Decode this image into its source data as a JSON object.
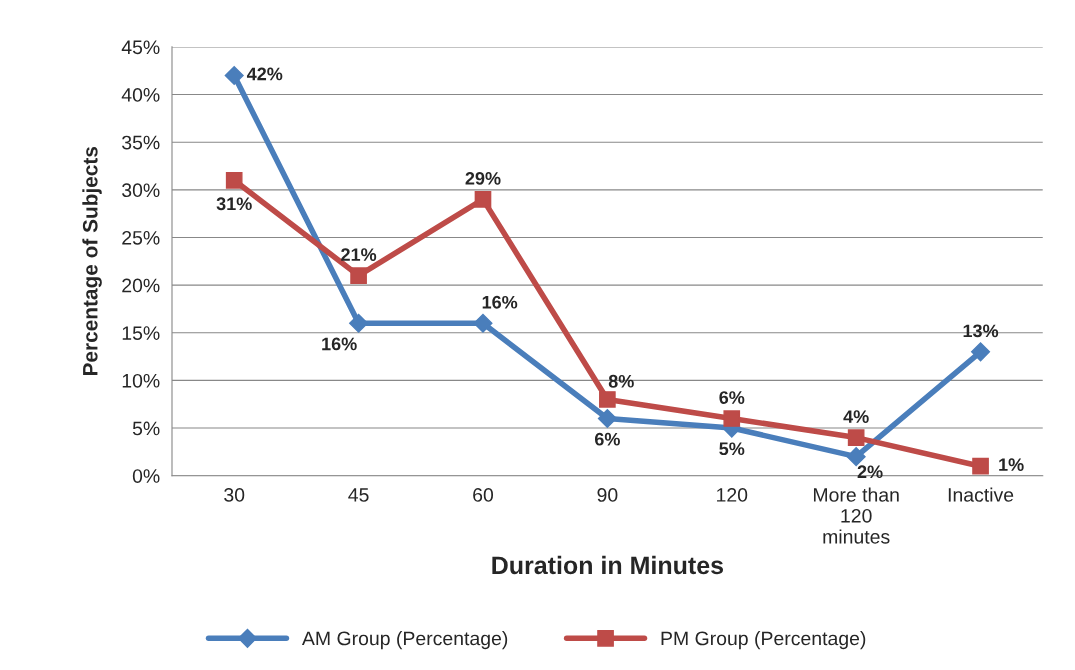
{
  "chart_data": {
    "type": "line",
    "xlabel": "Duration in Minutes",
    "ylabel": "Percentage of Subjects",
    "categories": [
      "30",
      "45",
      "60",
      "90",
      "120",
      "More than 120 minutes",
      "Inactive"
    ],
    "series": [
      {
        "name": "AM Group (Percentage)",
        "color": "#4a7ebb",
        "marker": "diamond",
        "values": [
          42,
          16,
          16,
          6,
          5,
          2,
          13
        ],
        "value_labels": [
          "42%",
          "16%",
          "16%",
          "6%",
          "5%",
          "2%",
          "13%"
        ]
      },
      {
        "name": "PM Group (Percentage)",
        "color": "#be4b48",
        "marker": "square",
        "values": [
          31,
          21,
          29,
          8,
          6,
          4,
          1
        ],
        "value_labels": [
          "31%",
          "21%",
          "29%",
          "8%",
          "6%",
          "4%",
          "1%"
        ]
      }
    ],
    "ylim": [
      0,
      45
    ],
    "yticks": [
      {
        "value": 0,
        "label": "0%"
      },
      {
        "value": 5,
        "label": "5%"
      },
      {
        "value": 10,
        "label": "10%"
      },
      {
        "value": 15,
        "label": "15%"
      },
      {
        "value": 20,
        "label": "20%"
      },
      {
        "value": 25,
        "label": "25%"
      },
      {
        "value": 30,
        "label": "30%"
      },
      {
        "value": 35,
        "label": "35%"
      },
      {
        "value": 40,
        "label": "40%"
      },
      {
        "value": 45,
        "label": "45%"
      }
    ],
    "grid": "y",
    "legend": "bottom",
    "line_style": "solid"
  }
}
